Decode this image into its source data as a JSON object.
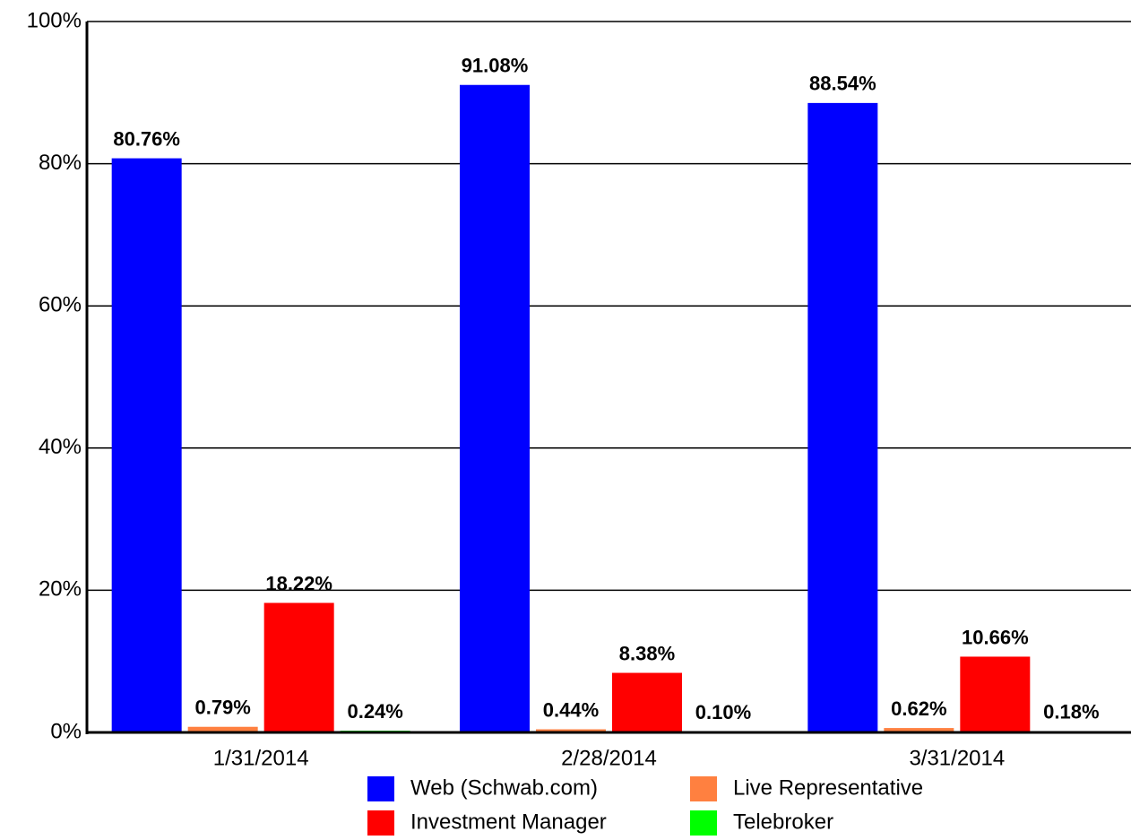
{
  "chart_data": {
    "type": "bar",
    "categories": [
      "1/31/2014",
      "2/28/2014",
      "3/31/2014"
    ],
    "series": [
      {
        "name": "Web (Schwab.com)",
        "color": "#0000ff",
        "values": [
          80.76,
          91.08,
          88.54
        ],
        "value_labels": [
          "80.76%",
          "91.08%",
          "88.54%"
        ]
      },
      {
        "name": "Live Representative",
        "color": "#ff8040",
        "values": [
          0.79,
          0.44,
          0.62
        ],
        "value_labels": [
          "0.79%",
          "0.44%",
          "0.62%"
        ]
      },
      {
        "name": "Investment Manager",
        "color": "#ff0000",
        "values": [
          18.22,
          8.38,
          10.66
        ],
        "value_labels": [
          "18.22%",
          "8.38%",
          "10.66%"
        ]
      },
      {
        "name": "Telebroker",
        "color": "#00ff00",
        "values": [
          0.24,
          0.1,
          0.18
        ],
        "value_labels": [
          "0.24%",
          "0.10%",
          "0.18%"
        ]
      }
    ],
    "ylim": [
      0,
      100
    ],
    "yticks": [
      {
        "value": 0,
        "label": "0%"
      },
      {
        "value": 20,
        "label": "20%"
      },
      {
        "value": 40,
        "label": "40%"
      },
      {
        "value": 60,
        "label": "60%"
      },
      {
        "value": 80,
        "label": "80%"
      },
      {
        "value": 100,
        "label": "100%"
      }
    ],
    "grid": true,
    "legend": "bottom"
  }
}
